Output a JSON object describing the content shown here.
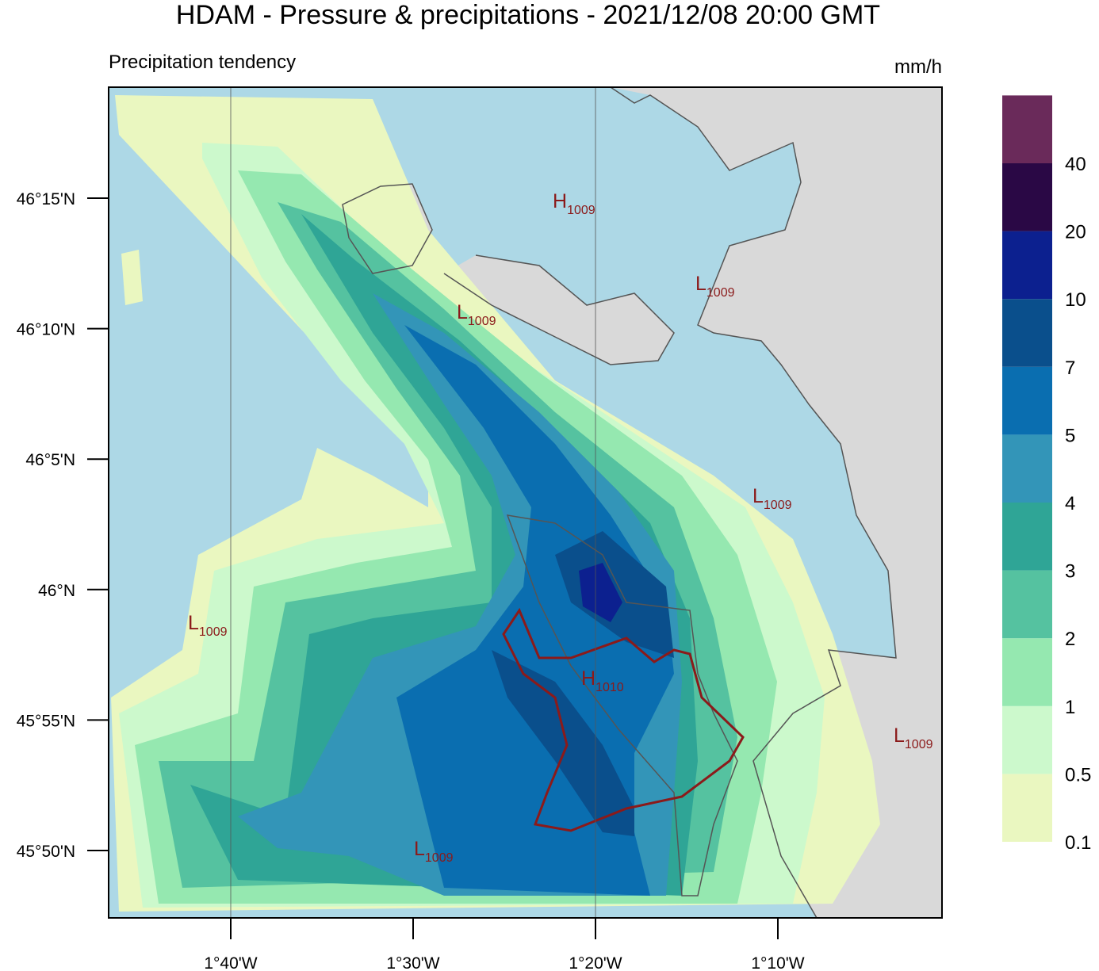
{
  "header": {
    "title": "HDAM - Pressure & precipitations  -  2021/12/08  20:00 GMT",
    "subtitle": "Precipitation tendency"
  },
  "legend": {
    "unit": "mm/h",
    "labels": [
      "0.1",
      "0.5",
      "1",
      "2",
      "3",
      "4",
      "5",
      "7",
      "10",
      "20",
      "40"
    ],
    "colors": [
      "#eaf7c0",
      "#ccf9cc",
      "#95e8b0",
      "#55c2a0",
      "#2fa596",
      "#3395b8",
      "#0a6eb0",
      "#0a4f8c",
      "#0c208f",
      "#2a0845",
      "#6a2a5a"
    ]
  },
  "axes": {
    "y_labels": [
      "46°15'N",
      "46°10'N",
      "46°5'N",
      "46°N",
      "45°55'N",
      "45°50'N"
    ],
    "x_labels": [
      "1°40'W",
      "1°30'W",
      "1°20'W",
      "1°10'W"
    ]
  },
  "pressure_labels": [
    {
      "letter": "H",
      "value": "1009"
    },
    {
      "letter": "L",
      "value": "1009"
    },
    {
      "letter": "L",
      "value": "1009"
    },
    {
      "letter": "L",
      "value": "1009"
    },
    {
      "letter": "L",
      "value": "1009"
    },
    {
      "letter": "H",
      "value": "1010"
    },
    {
      "letter": "L",
      "value": "1009"
    },
    {
      "letter": "L",
      "value": "1009"
    }
  ]
}
